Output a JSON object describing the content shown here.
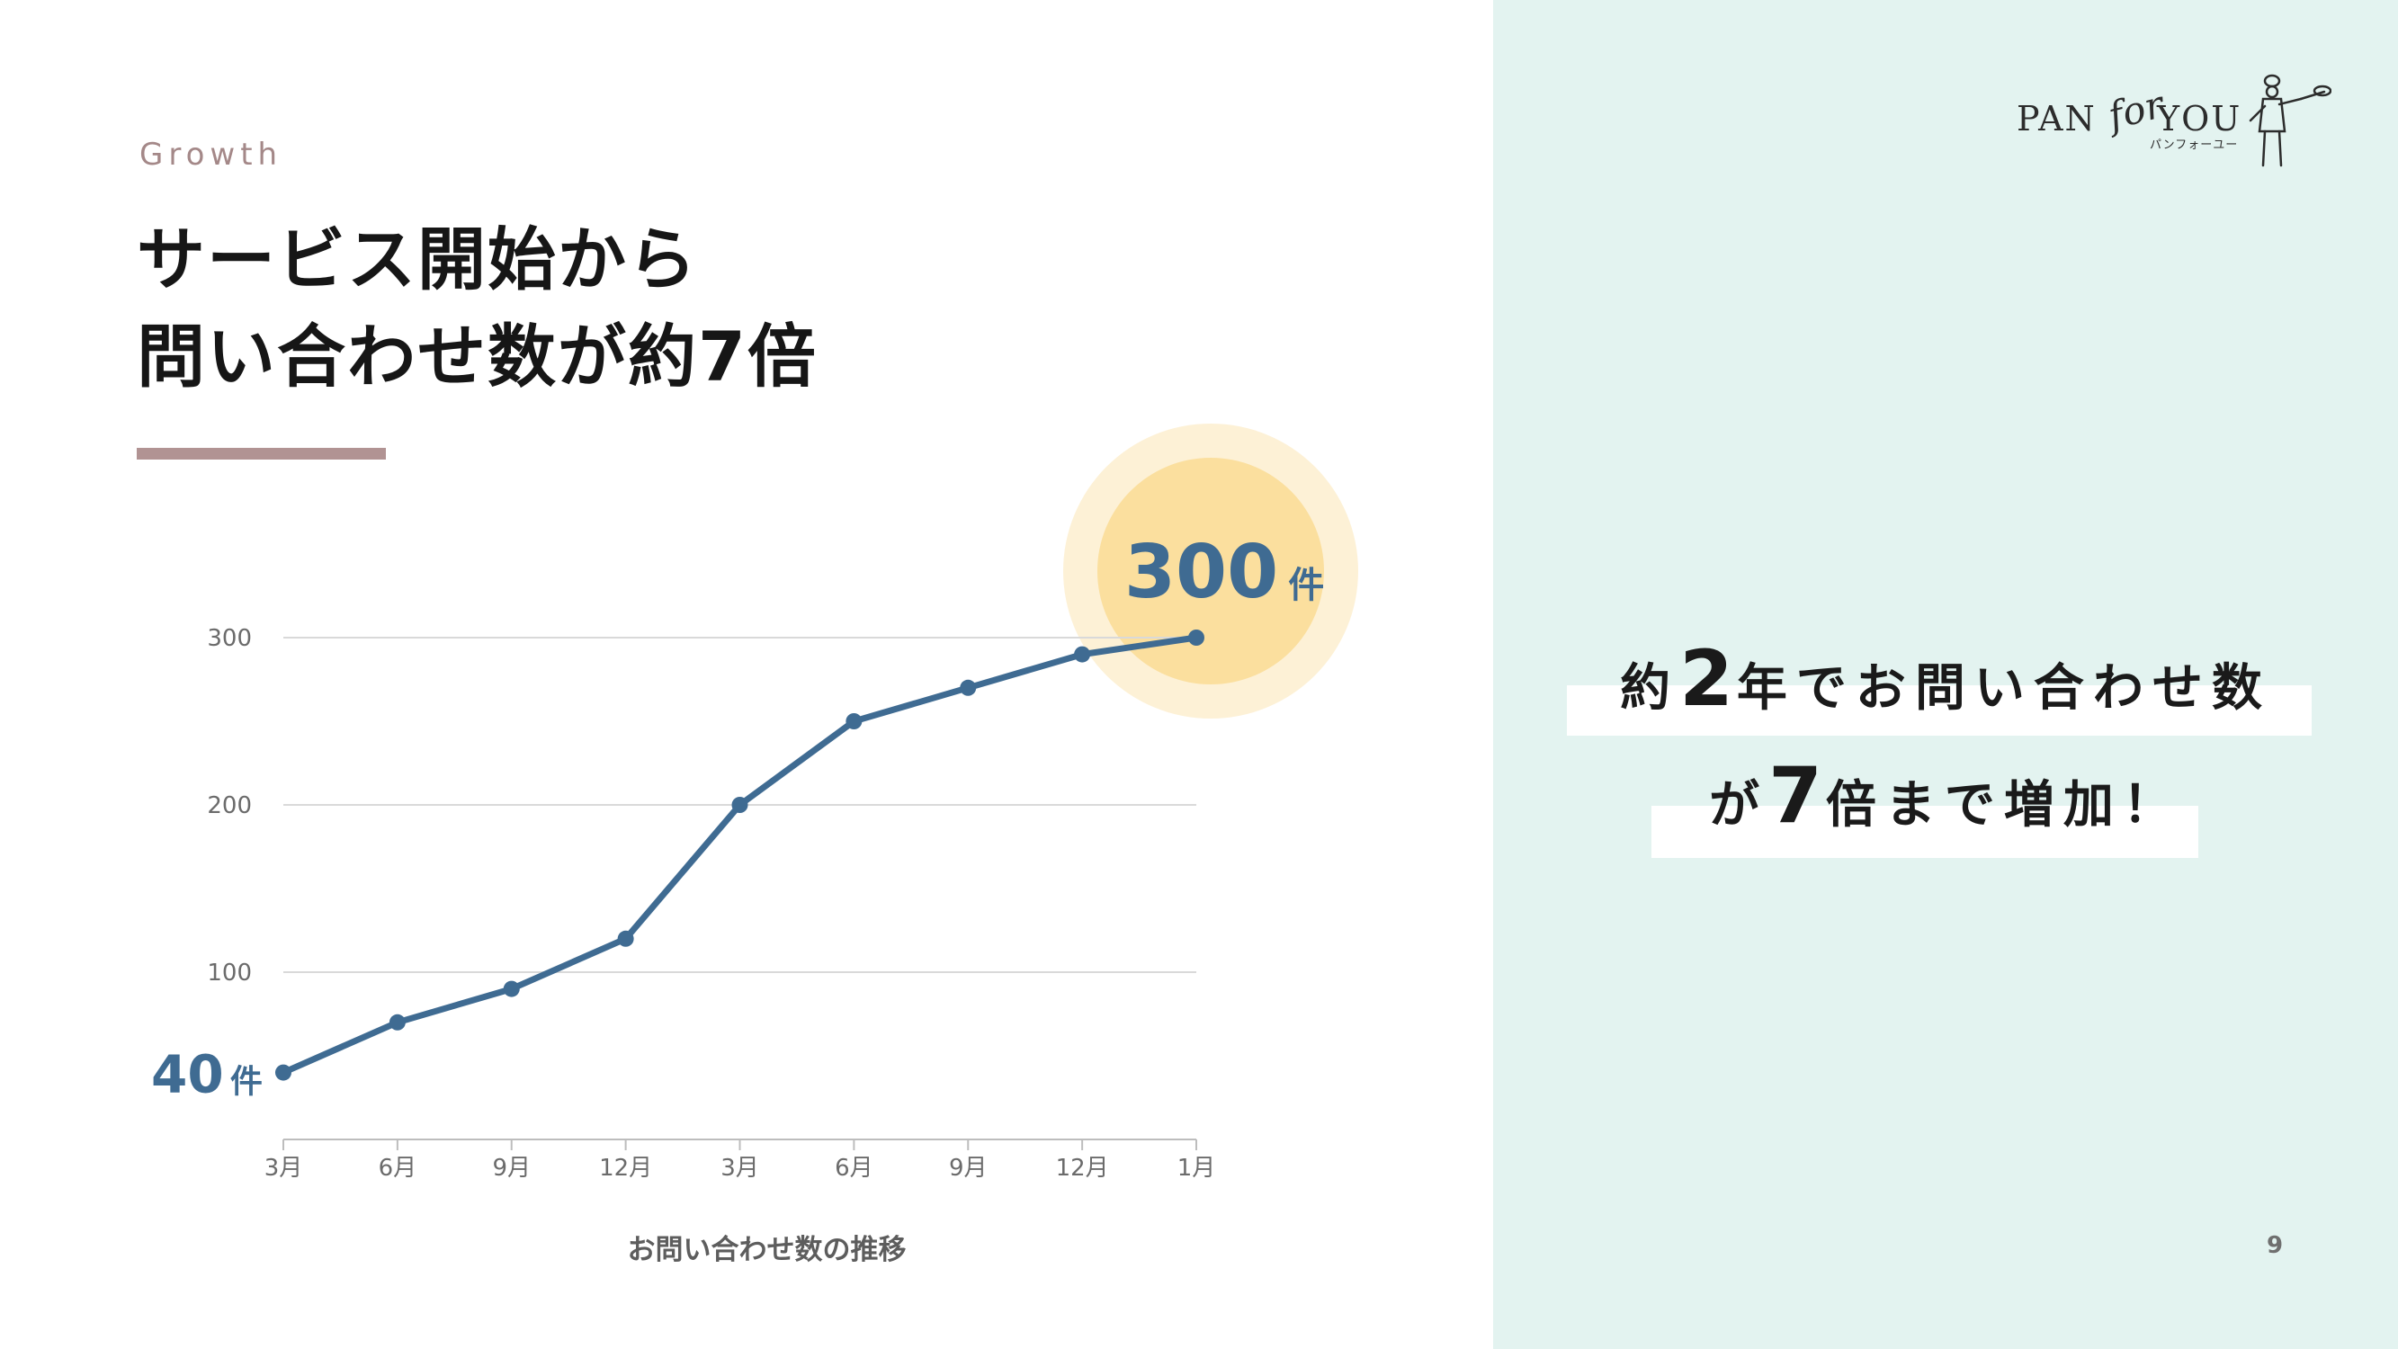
{
  "slide": {
    "eyebrow": "Growth",
    "headline_line1": "サービス開始から",
    "headline_line2": "問い合わせ数が約7倍",
    "page_number": "9"
  },
  "logo": {
    "word_left": "PAN",
    "word_for": "for",
    "word_right": "YOU",
    "subtitle": "パンフォーユー",
    "figure": "baker-with-peel-icon"
  },
  "callout": {
    "line1_prefix": "約",
    "line1_number": "2",
    "line1_suffix": "年でお問い合わせ数",
    "line2_prefix": "が",
    "line2_number": "7",
    "line2_suffix": "倍まで増加！"
  },
  "chart_data": {
    "type": "line",
    "categories": [
      "3月",
      "6月",
      "9月",
      "12月",
      "3月",
      "6月",
      "9月",
      "12月",
      "1月"
    ],
    "series": [
      {
        "values": [
          40,
          70,
          90,
          120,
          200,
          250,
          270,
          290,
          300
        ]
      }
    ],
    "xlabel": "お問い合わせ数の推移",
    "ylabel": "",
    "ylim": [
      0,
      300
    ],
    "yticks": [
      100,
      200,
      300
    ],
    "grid": true,
    "annotations": {
      "start": {
        "number": "40",
        "unit": "件"
      },
      "end": {
        "number": "300",
        "unit": "件"
      }
    },
    "colors": {
      "line": "#3f6b92",
      "grid": "#d9d9d9",
      "highlight_outer": "#fdf1d6",
      "highlight_inner": "#fbdf9e"
    }
  }
}
